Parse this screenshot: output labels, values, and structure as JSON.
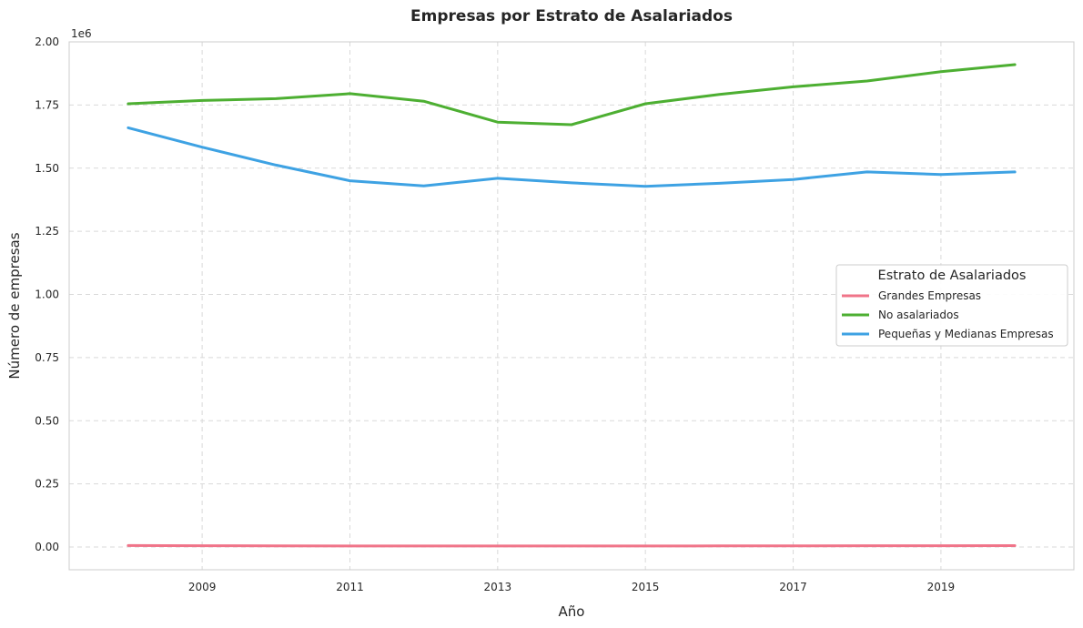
{
  "chart_data": {
    "type": "line",
    "title": "Empresas por Estrato de Asalariados",
    "xlabel": "Año",
    "ylabel": "Número de empresas",
    "y_offset_label": "1e6",
    "xlim": [
      2007.2,
      2020.8
    ],
    "ylim": [
      -90000,
      2000000
    ],
    "x_ticks": [
      2009,
      2011,
      2013,
      2015,
      2017,
      2019
    ],
    "y_ticks": [
      0,
      250000,
      500000,
      750000,
      1000000,
      1250000,
      1500000,
      1750000,
      2000000
    ],
    "y_tick_labels": [
      "0.00",
      "0.25",
      "0.50",
      "0.75",
      "1.00",
      "1.25",
      "1.50",
      "1.75",
      "2.00"
    ],
    "grid": true,
    "legend": {
      "title": "Estrato de Asalariados",
      "placement": "center-right"
    },
    "x": [
      2008,
      2009,
      2010,
      2011,
      2012,
      2013,
      2014,
      2015,
      2016,
      2017,
      2018,
      2019,
      2020
    ],
    "series": [
      {
        "name": "Grandes Empresas",
        "color": "#f07489",
        "values": [
          6000,
          5000,
          4500,
          4000,
          4000,
          4000,
          4000,
          4000,
          4500,
          4500,
          5000,
          5000,
          5500
        ]
      },
      {
        "name": "No asalariados",
        "color": "#4daf32",
        "values": [
          1755000,
          1768000,
          1775000,
          1795000,
          1765000,
          1682000,
          1672000,
          1755000,
          1792000,
          1822000,
          1845000,
          1882000,
          1910000
        ]
      },
      {
        "name": "Pequeñas y Medianas Empresas",
        "color": "#3ea2e3",
        "values": [
          1660000,
          1583000,
          1512000,
          1450000,
          1430000,
          1460000,
          1442000,
          1428000,
          1440000,
          1455000,
          1485000,
          1475000,
          1485000
        ]
      }
    ]
  }
}
